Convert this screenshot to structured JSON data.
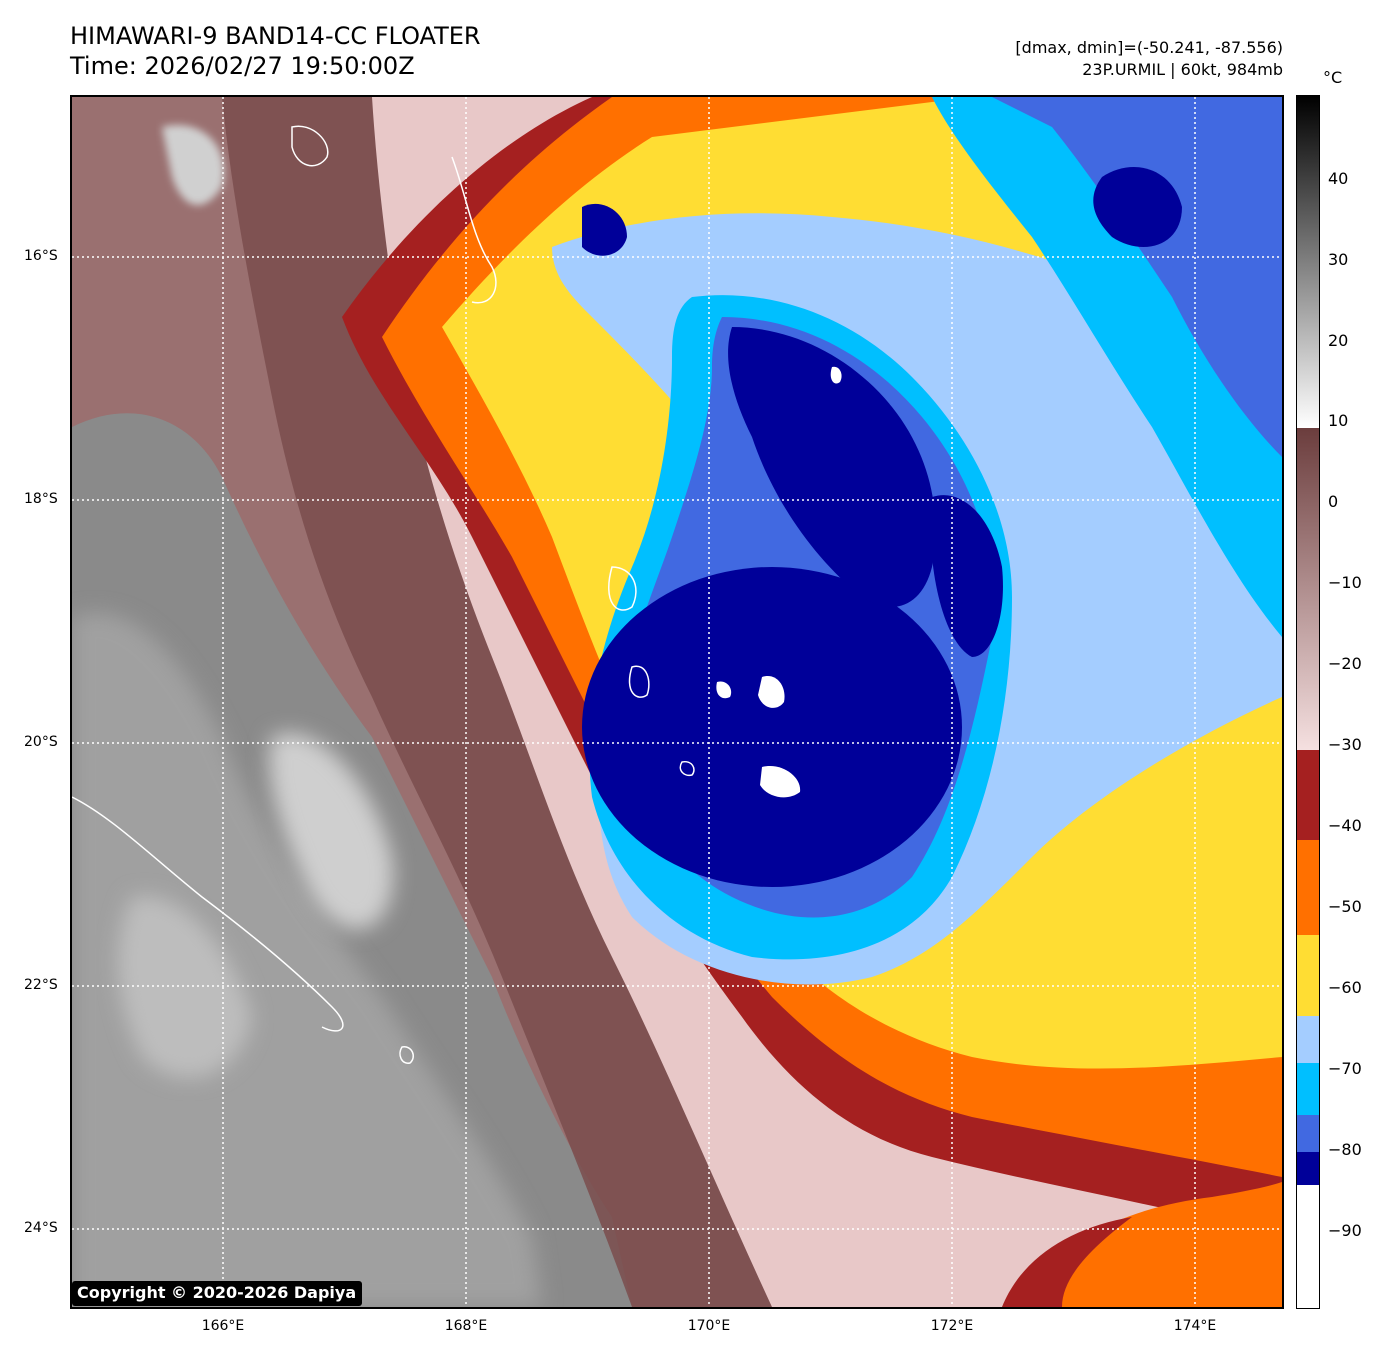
{
  "header": {
    "title_line1": "HIMAWARI-9 BAND14-CC FLOATER",
    "title_line2": "Time: 2026/02/27 19:50:00Z",
    "meta_line1": "[dmax, dmin]=(-50.241, -87.556)",
    "meta_line2": "23P.URMIL | 60kt, 984mb"
  },
  "map": {
    "lat_labels": [
      "16°S",
      "18°S",
      "20°S",
      "22°S",
      "24°S"
    ],
    "lon_labels": [
      "166°E",
      "168°E",
      "170°E",
      "172°E",
      "174°E"
    ],
    "gridlines": "dotted white",
    "copyright": "Copyright © 2020-2026 Dapiya"
  },
  "colorbar": {
    "unit": "°C",
    "ticks": [
      "40",
      "30",
      "20",
      "10",
      "0",
      "−10",
      "−20",
      "−30",
      "−40",
      "−50",
      "−60",
      "−70",
      "−80",
      "−90"
    ],
    "colors": {
      "deep_blue": "#000099",
      "royal_blue": "#4169e1",
      "sky_blue": "#00bfff",
      "light_blue": "#a4cdff",
      "yellow": "#ffdd33",
      "orange": "#ff7000",
      "dark_red": "#a52020",
      "pink": "#f0d4d4",
      "mauve": "#b89090",
      "brown": "#7a4c4c",
      "gray": "#8a8a8a",
      "light_gray": "#d0d0d0"
    }
  }
}
